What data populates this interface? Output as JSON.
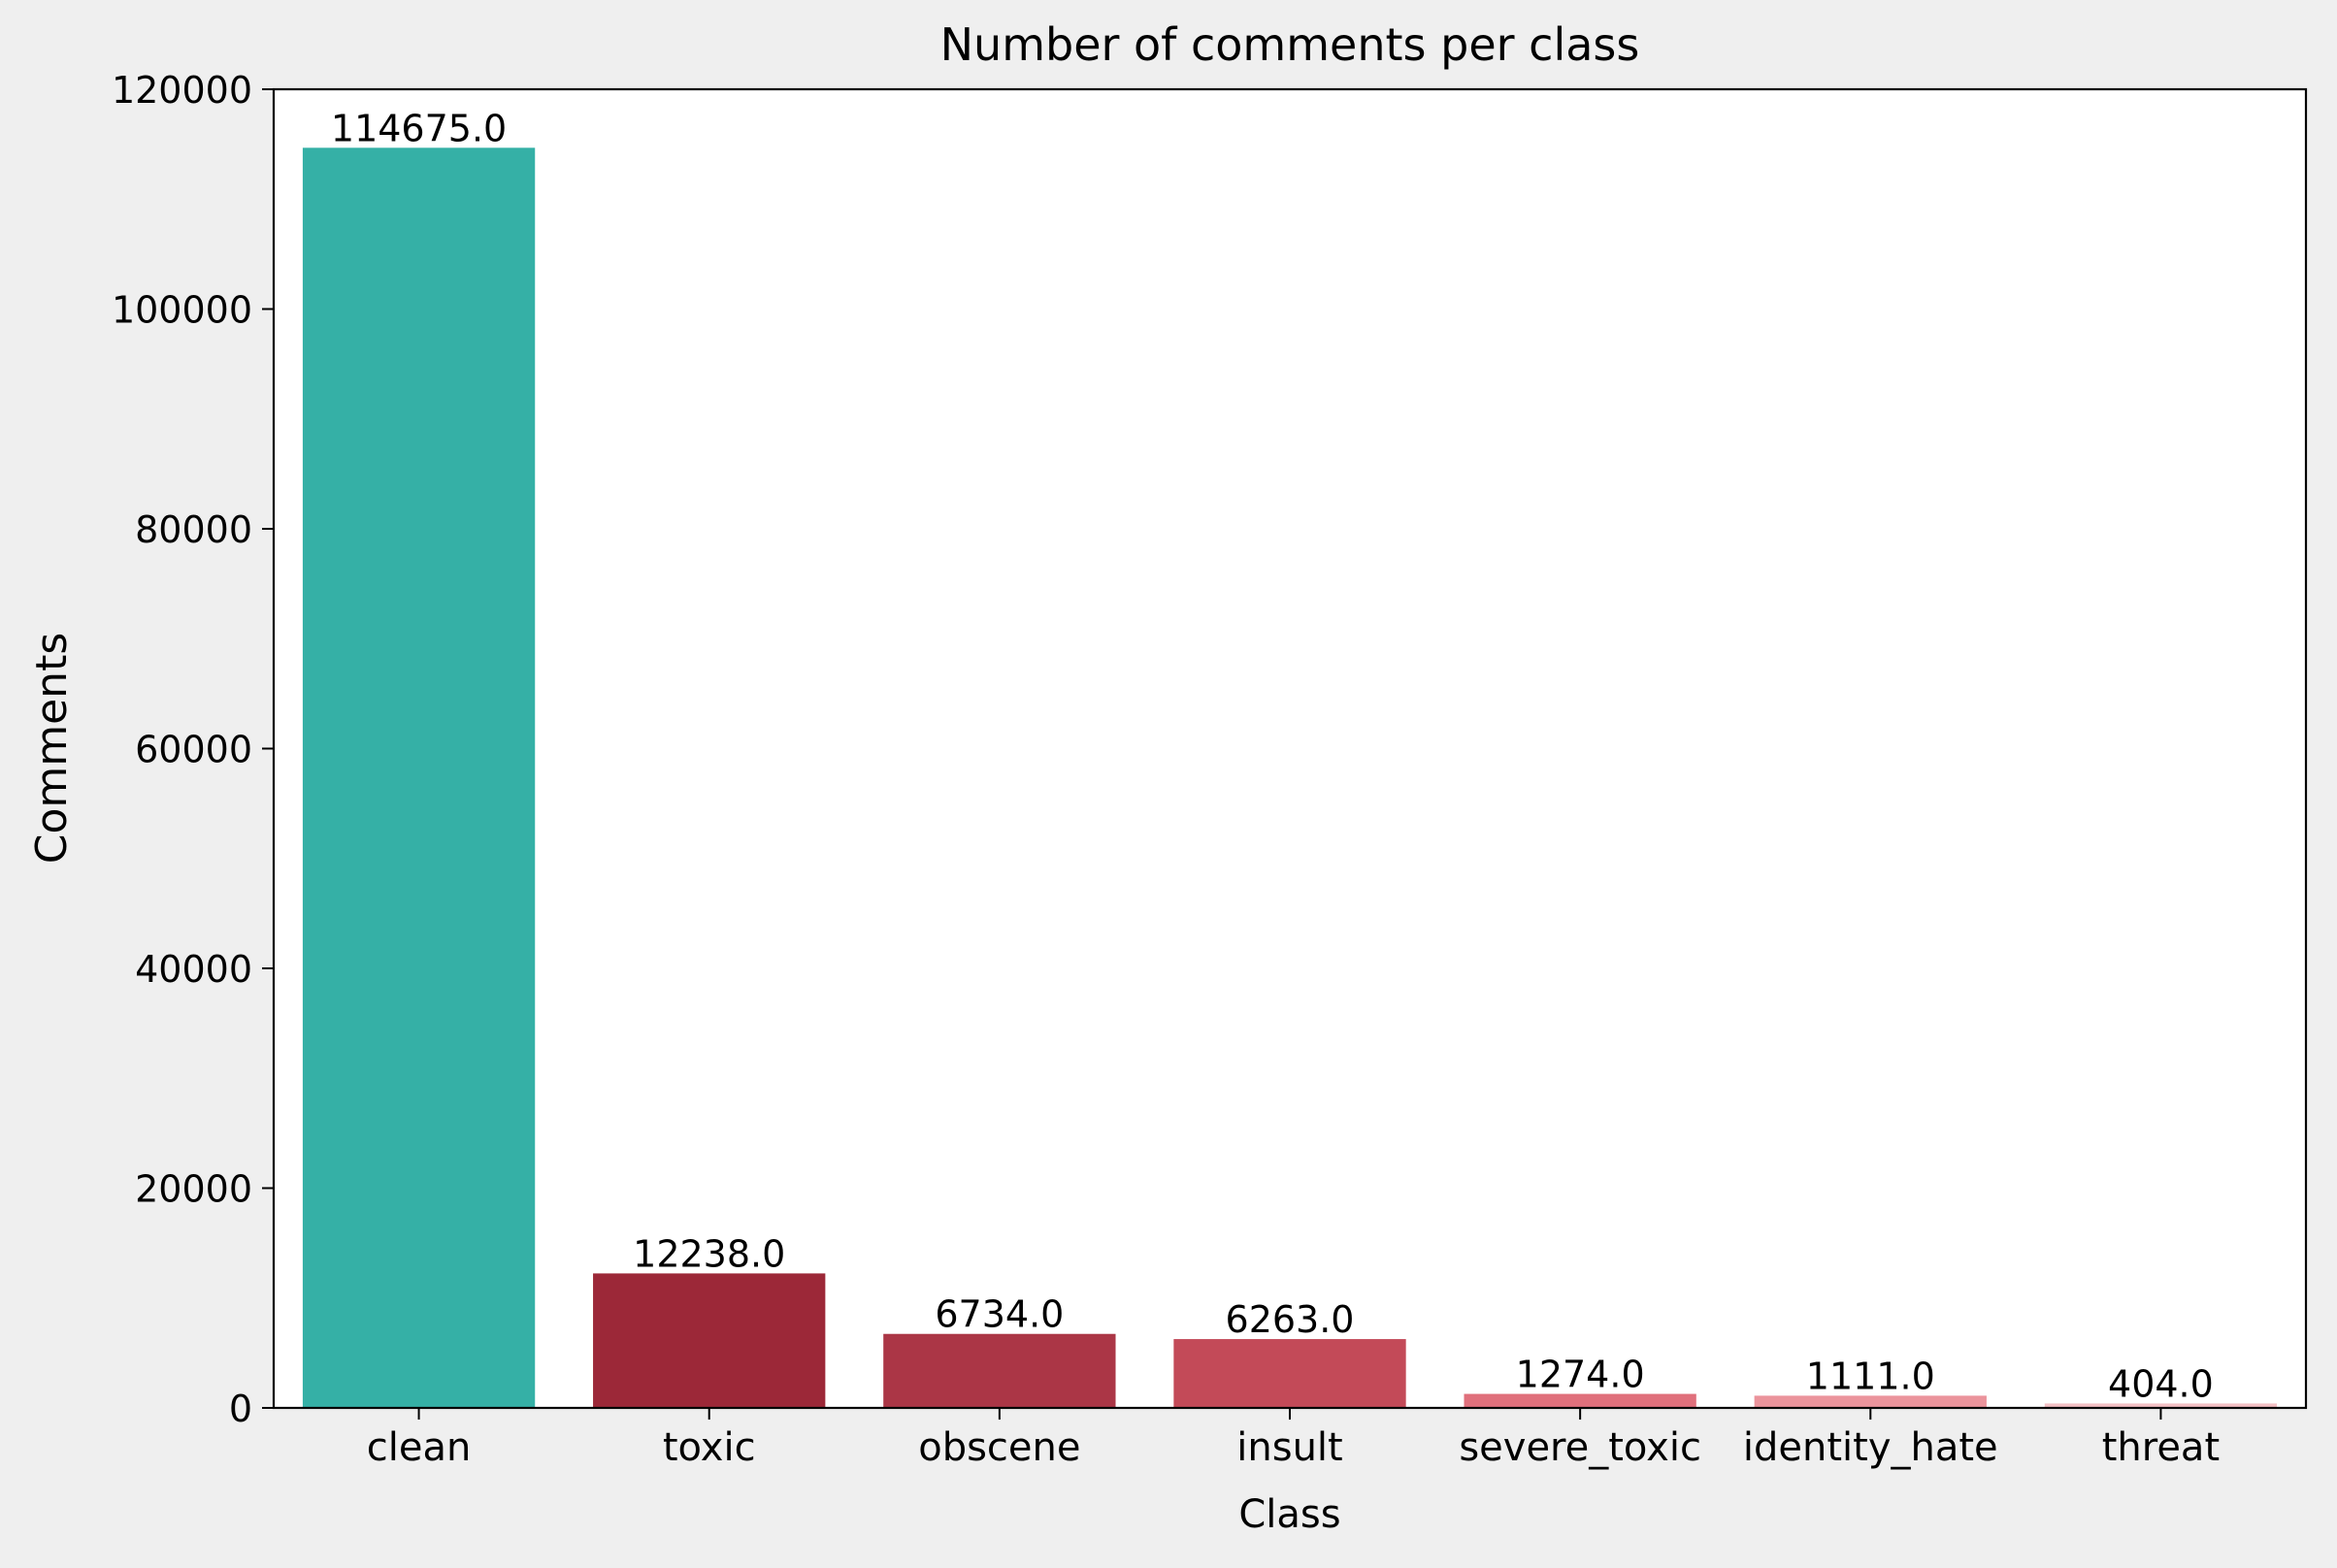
{
  "chart_data": {
    "type": "bar",
    "title": "Number of comments per class",
    "xlabel": "Class",
    "ylabel": "Comments",
    "categories": [
      "clean",
      "toxic",
      "obscene",
      "insult",
      "severe_toxic",
      "identity_hate",
      "threat"
    ],
    "values": [
      114675,
      12238,
      6734,
      6263,
      1274,
      1111,
      404
    ],
    "value_labels": [
      "114675.0",
      "12238.0",
      "6734.0",
      "6263.0",
      "1274.0",
      "1111.0",
      "404.0"
    ],
    "colors": [
      "#35b0a6",
      "#9c2838",
      "#ab3646",
      "#c34a58",
      "#e0707c",
      "#eb949c",
      "#f3c0c4"
    ],
    "ylim": [
      0,
      120000
    ],
    "yticks": [
      0,
      20000,
      40000,
      60000,
      80000,
      100000,
      120000
    ],
    "ytick_labels": [
      "0",
      "20000",
      "40000",
      "60000",
      "80000",
      "100000",
      "120000"
    ],
    "grid": false,
    "legend": "none"
  }
}
